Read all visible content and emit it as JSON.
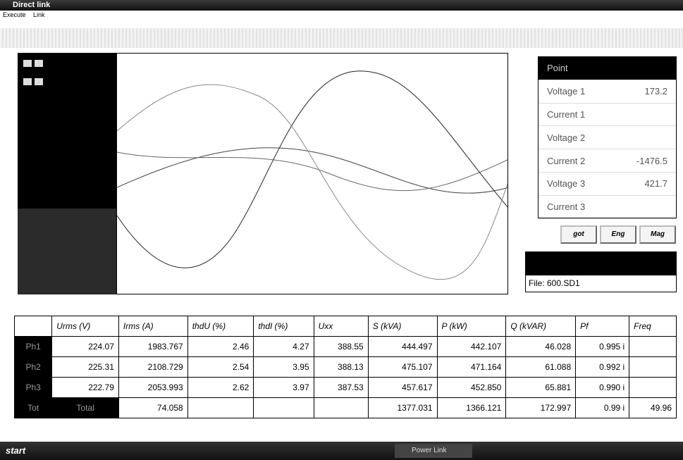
{
  "window": {
    "title": "Direct link",
    "menu": [
      "Execute",
      "Link"
    ]
  },
  "readout": {
    "header": "Point",
    "rows": [
      [
        "Voltage 1",
        "173.2"
      ],
      [
        "Current 1",
        null
      ],
      [
        "Voltage 2",
        null
      ],
      [
        "Current 2",
        "-1476.5"
      ],
      [
        "Voltage 3",
        "421.7"
      ],
      [
        "Current 3",
        null
      ]
    ]
  },
  "buttons": [
    "got",
    "Eng",
    "Mag"
  ],
  "file": "File: 600.SD1",
  "table": {
    "header": [
      null,
      "Urms (V)",
      "Irms (A)",
      "thdU (%)",
      "thdI (%)",
      "Uxx",
      "S (kVA)",
      "P (kW)",
      "Q (kVAR)",
      "Pf",
      "Freq"
    ],
    "rows": [
      [
        "Ph1",
        "224.07",
        "1983.767",
        "2.46",
        "4.27",
        "388.55",
        "444.497",
        "442.107",
        "46.028",
        "0.995 i",
        null
      ],
      [
        "Ph2",
        "225.31",
        "2108.729",
        "2.54",
        "3.95",
        "388.13",
        "475.107",
        "471.164",
        "61.088",
        "0.992 i",
        null
      ],
      [
        "Ph3",
        "222.79",
        "2053.993",
        "2.62",
        "3.97",
        "387.53",
        "457.617",
        "452.850",
        "65.881",
        "0.990 i",
        null
      ],
      [
        "Tot",
        "Total",
        "74.058",
        null,
        null,
        null,
        "1377.031",
        "1366.121",
        "172.997",
        "0.99 i",
        "49.96"
      ]
    ]
  },
  "taskbar": {
    "start": "start",
    "task": "Power Link"
  }
}
